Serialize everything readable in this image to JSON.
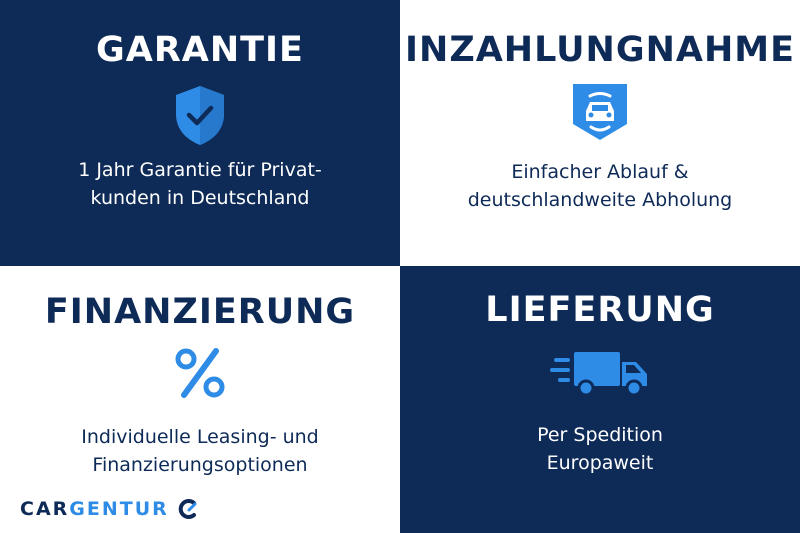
{
  "colors": {
    "navy": "#0e2a57",
    "accent": "#2f8ce6",
    "white": "#ffffff"
  },
  "tiles": [
    {
      "title": "GARANTIE",
      "icon": "shield-check-icon",
      "lines": [
        "1 Jahr Garantie für Privat-",
        "kunden in Deutschland"
      ]
    },
    {
      "title": "INZAHLUNGNAHME",
      "icon": "car-badge-icon",
      "lines": [
        "Einfacher Ablauf &",
        "deutschlandweite Abholung"
      ]
    },
    {
      "title": "FINANZIERUNG",
      "icon": "percent-icon",
      "lines": [
        "Individuelle Leasing- und",
        "Finanzierungsoptionen"
      ]
    },
    {
      "title": "LIEFERUNG",
      "icon": "delivery-truck-icon",
      "lines": [
        "Per Spedition",
        "Europaweit"
      ]
    }
  ],
  "logo": {
    "part1": "CAR",
    "part2": "GENTUR"
  }
}
